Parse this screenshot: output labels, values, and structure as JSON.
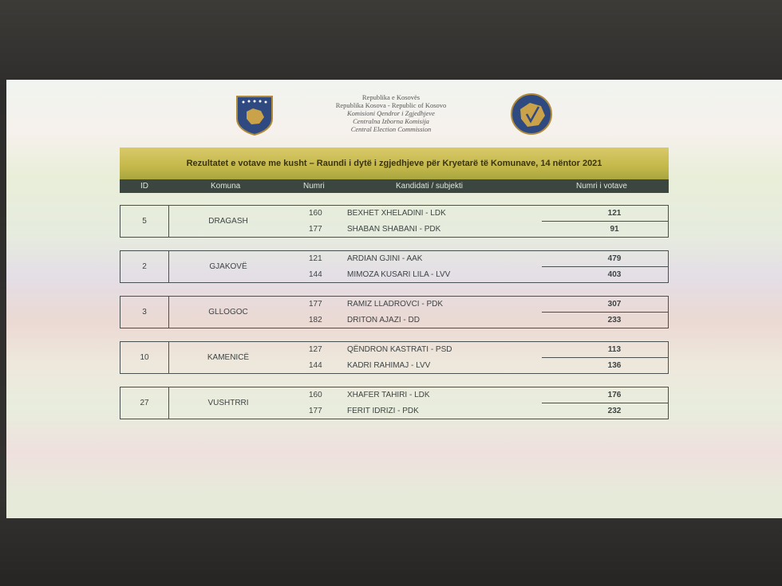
{
  "header": {
    "lines": [
      "Republika e Kosovës",
      "Republika Kosova - Republic of Kosovo",
      "Komisioni Qendror i Zgjedhjeve",
      "Centralna Izborna Komisija",
      "Central Election Commission"
    ],
    "title": "Rezultatet e votave me kusht – Raundi i dytë i zgjedhjeve për Kryetarë të Komunave, 14 nëntor 2021"
  },
  "columns": {
    "id": "ID",
    "komuna": "Komuna",
    "numri": "Numri",
    "kandidati": "Kandidati / subjekti",
    "votat": "Numri i votave"
  },
  "rows": [
    {
      "id": "5",
      "komuna": "DRAGASH",
      "c": [
        {
          "n": "160",
          "name": "BEXHET XHELADINI - LDK",
          "v": "121"
        },
        {
          "n": "177",
          "name": "SHABAN SHABANI - PDK",
          "v": "91"
        }
      ]
    },
    {
      "id": "2",
      "komuna": "GJAKOVË",
      "c": [
        {
          "n": "121",
          "name": "ARDIAN GJINI - AAK",
          "v": "479"
        },
        {
          "n": "144",
          "name": "MIMOZA KUSARI LILA - LVV",
          "v": "403"
        }
      ]
    },
    {
      "id": "3",
      "komuna": "GLLOGOC",
      "c": [
        {
          "n": "177",
          "name": "RAMIZ LLADROVCI - PDK",
          "v": "307"
        },
        {
          "n": "182",
          "name": "DRITON AJAZI - DD",
          "v": "233"
        }
      ]
    },
    {
      "id": "10",
      "komuna": "KAMENICË",
      "c": [
        {
          "n": "127",
          "name": "QËNDRON KASTRATI - PSD",
          "v": "113"
        },
        {
          "n": "144",
          "name": "KADRI RAHIMAJ - LVV",
          "v": "136"
        }
      ]
    },
    {
      "id": "27",
      "komuna": "VUSHTRRI",
      "c": [
        {
          "n": "160",
          "name": "XHAFER TAHIRI - LDK",
          "v": "176"
        },
        {
          "n": "177",
          "name": "FERIT IDRIZI - PDK",
          "v": "232"
        }
      ]
    }
  ]
}
